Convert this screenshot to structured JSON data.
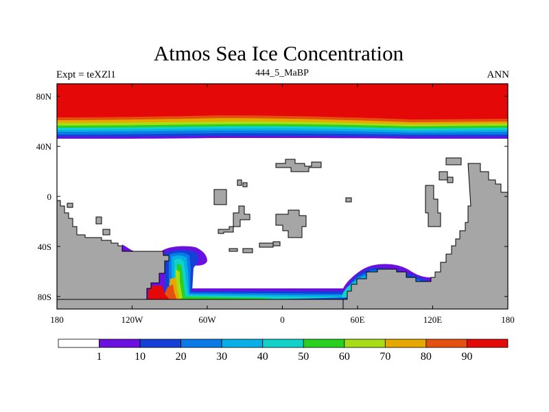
{
  "header": {
    "title": "Atmos Sea Ice Concentration",
    "left_label": "Expt = teXZl1",
    "center_label": "444_5_MaBP",
    "right_label": "ANN"
  },
  "map": {
    "projection": "cylindrical-equidistant",
    "lon_range": [
      -180,
      180
    ],
    "lat_range": [
      -90,
      90
    ],
    "x_ticks": [
      {
        "value": -180,
        "label": "180"
      },
      {
        "value": -120,
        "label": "120W"
      },
      {
        "value": -60,
        "label": "60W"
      },
      {
        "value": 0,
        "label": "0"
      },
      {
        "value": 60,
        "label": "60E"
      },
      {
        "value": 120,
        "label": "120E"
      },
      {
        "value": 180,
        "label": "180"
      }
    ],
    "y_ticks": [
      {
        "value": 80,
        "label": "80N"
      },
      {
        "value": 40,
        "label": "40N"
      },
      {
        "value": 0,
        "label": "0"
      },
      {
        "value": -40,
        "label": "40S"
      },
      {
        "value": -80,
        "label": "80S"
      }
    ],
    "land_color": "#a6a6a6",
    "ocean_color": "#ffffff"
  },
  "colorbar": {
    "levels": [
      "1",
      "10",
      "20",
      "30",
      "40",
      "50",
      "60",
      "70",
      "80",
      "90"
    ],
    "colors": [
      "#ffffff",
      "#6a10e0",
      "#1440d8",
      "#0a7ae6",
      "#08aee6",
      "#10d2c8",
      "#28d020",
      "#a8dc14",
      "#e4a800",
      "#e45010",
      "#e40808"
    ]
  }
}
